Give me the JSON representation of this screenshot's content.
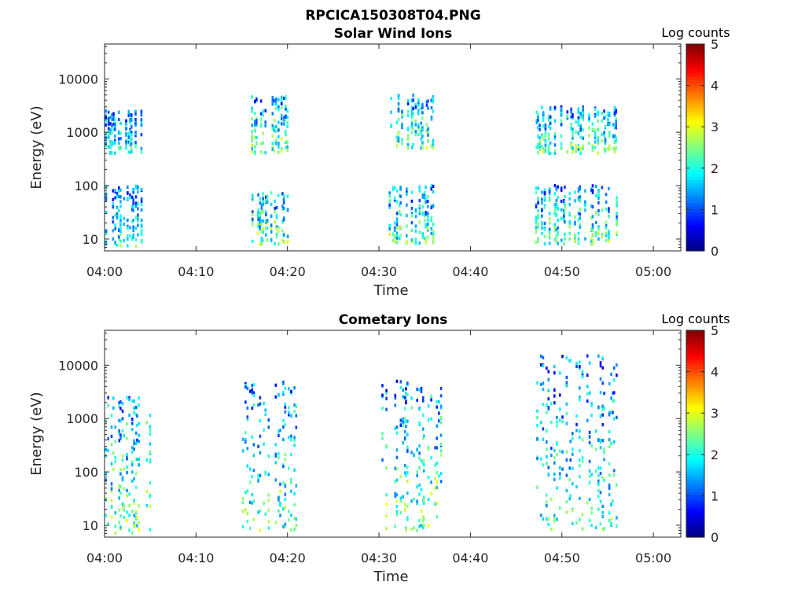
{
  "figure_title": "RPCICA150308T04.PNG",
  "colorbar_range": [
    0,
    5
  ],
  "chart_data": [
    {
      "type": "heatmap",
      "title": "Solar Wind Ions",
      "xlabel": "Time",
      "ylabel": "Energy (eV)",
      "colorbar_label": "Log counts",
      "x_range": [
        "04:00",
        "05:03"
      ],
      "y_scale": "log",
      "y_range": [
        6,
        45000
      ],
      "x_tick_labels": [
        "04:00",
        "04:10",
        "04:20",
        "04:30",
        "04:40",
        "04:50",
        "05:00"
      ],
      "y_tick_labels": [
        "10",
        "100",
        "1000",
        "10000"
      ],
      "colorbar_ticks": [
        "0",
        "1",
        "2",
        "3",
        "4",
        "5"
      ],
      "colormap": "jet",
      "bursts": [
        {
          "t_start": "04:00",
          "t_end": "04:04",
          "high_energy_eV": [
            400,
            2500
          ],
          "low_energy_eV": [
            7,
            100
          ],
          "peak_log_counts": 2.5
        },
        {
          "t_start": "04:16",
          "t_end": "04:20",
          "high_energy_eV": [
            400,
            5000
          ],
          "low_energy_eV": [
            8,
            80
          ],
          "peak_log_counts": 3.0
        },
        {
          "t_start": "04:31",
          "t_end": "04:36",
          "high_energy_eV": [
            500,
            5000
          ],
          "low_energy_eV": [
            8,
            100
          ],
          "peak_log_counts": 2.8
        },
        {
          "t_start": "04:47",
          "t_end": "04:56",
          "high_energy_eV": [
            400,
            3000
          ],
          "low_energy_eV": [
            8,
            100
          ],
          "peak_log_counts": 2.8
        }
      ]
    },
    {
      "type": "heatmap",
      "title": "Cometary Ions",
      "xlabel": "Time",
      "ylabel": "Energy (eV)",
      "colorbar_label": "Log counts",
      "x_range": [
        "04:00",
        "05:03"
      ],
      "y_scale": "log",
      "y_range": [
        6,
        45000
      ],
      "x_tick_labels": [
        "04:00",
        "04:10",
        "04:20",
        "04:30",
        "04:40",
        "04:50",
        "05:00"
      ],
      "y_tick_labels": [
        "10",
        "100",
        "1000",
        "10000"
      ],
      "colorbar_ticks": [
        "0",
        "1",
        "2",
        "3",
        "4",
        "5"
      ],
      "colormap": "jet",
      "bursts": [
        {
          "t_start": "04:00",
          "t_end": "04:05",
          "energy_eV": [
            7,
            2500
          ],
          "peak_log_counts": 3.0
        },
        {
          "t_start": "04:15",
          "t_end": "04:21",
          "energy_eV": [
            8,
            5000
          ],
          "peak_log_counts": 2.8
        },
        {
          "t_start": "04:30",
          "t_end": "04:37",
          "energy_eV": [
            8,
            5000
          ],
          "peak_log_counts": 3.0
        },
        {
          "t_start": "04:47",
          "t_end": "04:56",
          "energy_eV": [
            8,
            15000
          ],
          "peak_log_counts": 2.7
        }
      ]
    }
  ]
}
